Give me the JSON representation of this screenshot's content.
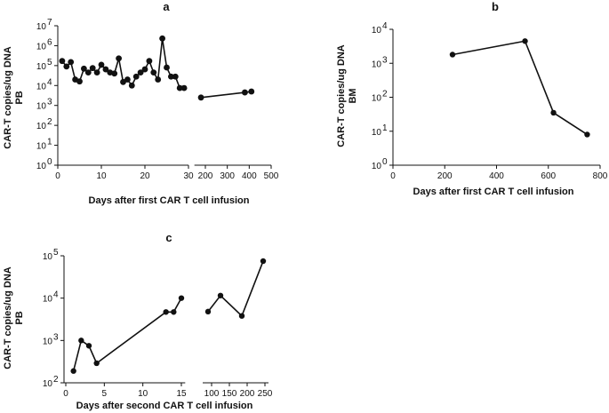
{
  "chart_data": [
    {
      "type": "line",
      "panel": "a",
      "xlabel": "Days after first CAR T cell infusion",
      "ylabel": [
        "CAR-T copies/ug DNA",
        "PB"
      ],
      "yscale": "log",
      "ylim": [
        1,
        10000000
      ],
      "y_ticks": [
        {
          "base": "10",
          "exp": "0"
        },
        {
          "base": "10",
          "exp": "1"
        },
        {
          "base": "10",
          "exp": "2"
        },
        {
          "base": "10",
          "exp": "3"
        },
        {
          "base": "10",
          "exp": "4"
        },
        {
          "base": "10",
          "exp": "5"
        },
        {
          "base": "10",
          "exp": "6"
        },
        {
          "base": "10",
          "exp": "7"
        }
      ],
      "x_broken": true,
      "x_segments": [
        {
          "xlim": [
            0,
            30
          ],
          "ticks": [
            "0",
            "10",
            "20",
            "30"
          ]
        },
        {
          "xlim": [
            150,
            500
          ],
          "ticks": [
            "200",
            "300",
            "400",
            "500"
          ]
        }
      ],
      "series": [
        {
          "x": [
            1,
            2,
            3,
            4,
            5,
            6,
            7,
            8,
            9,
            10,
            11,
            12,
            13,
            14,
            15,
            16,
            17,
            18,
            19,
            20,
            21,
            22,
            23,
            24,
            25,
            26,
            27,
            28,
            29
          ],
          "y": [
            170000,
            90000,
            150000,
            20000,
            16000,
            70000,
            45000,
            75000,
            45000,
            110000,
            65000,
            45000,
            40000,
            230000,
            15000,
            20000,
            10000,
            28000,
            45000,
            65000,
            170000,
            45000,
            20000,
            2300000,
            80000,
            28000,
            28000,
            7500,
            7500
          ]
        },
        {
          "x": [
            180,
            380,
            410
          ],
          "y": [
            2500,
            4500,
            5000
          ]
        }
      ]
    },
    {
      "type": "line",
      "panel": "b",
      "xlabel": "Days after first CAR T cell infusion",
      "ylabel": [
        "CAR-T copies/ug DNA",
        "BM"
      ],
      "yscale": "log",
      "ylim": [
        1,
        10000
      ],
      "y_ticks": [
        {
          "base": "10",
          "exp": "0"
        },
        {
          "base": "10",
          "exp": "1"
        },
        {
          "base": "10",
          "exp": "2"
        },
        {
          "base": "10",
          "exp": "3"
        },
        {
          "base": "10",
          "exp": "4"
        }
      ],
      "xlim": [
        0,
        800
      ],
      "x_ticks": [
        "0",
        "200",
        "400",
        "600",
        "800"
      ],
      "series": [
        {
          "x": [
            230,
            510,
            620,
            750
          ],
          "y": [
            1800,
            4500,
            35,
            8
          ]
        }
      ]
    },
    {
      "type": "line",
      "panel": "c",
      "xlabel": "Days after second CAR T cell infusion",
      "ylabel": [
        "CAR-T copies/ug DNA",
        "PB"
      ],
      "yscale": "log",
      "ylim": [
        100,
        100000
      ],
      "y_ticks": [
        {
          "base": "10",
          "exp": "2"
        },
        {
          "base": "10",
          "exp": "3"
        },
        {
          "base": "10",
          "exp": "4"
        },
        {
          "base": "10",
          "exp": "5"
        }
      ],
      "x_broken": true,
      "x_segments": [
        {
          "xlim": [
            0,
            15.5
          ],
          "ticks": [
            "0",
            "5",
            "10",
            "15"
          ]
        },
        {
          "xlim": [
            75,
            260
          ],
          "ticks": [
            "100",
            "150",
            "200",
            "250"
          ]
        }
      ],
      "series": [
        {
          "x": [
            1,
            2,
            3,
            4,
            13,
            14,
            15
          ],
          "y": [
            190,
            1000,
            750,
            290,
            4700,
            4700,
            10000
          ]
        },
        {
          "x": [
            90,
            125,
            185,
            245
          ],
          "y": [
            4800,
            11500,
            3800,
            75000
          ]
        }
      ]
    }
  ]
}
